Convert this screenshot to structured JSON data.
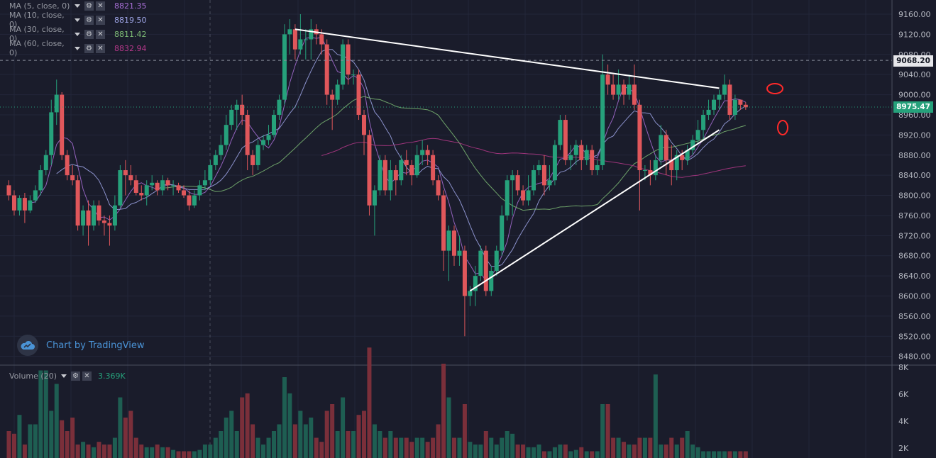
{
  "indicators": [
    {
      "label": "MA (5, close, 0)",
      "value": "8821.35",
      "color": "#a86fd6"
    },
    {
      "label": "MA (10, close, 0)",
      "value": "8819.50",
      "color": "#9fa6e8"
    },
    {
      "label": "MA (30, close, 0)",
      "value": "8811.42",
      "color": "#7dba74"
    },
    {
      "label": "MA (60, close, 0)",
      "value": "8832.94",
      "color": "#b5388a"
    }
  ],
  "watermark": "Chart by TradingView",
  "volume": {
    "label": "Volume (20)",
    "value": "3.369K"
  },
  "price_tags": {
    "crosshair": "9068.20",
    "last": "8975.47"
  },
  "colors": {
    "bg": "#1a1c2b",
    "up": "#26a17b",
    "down": "#e0575b",
    "ma5": "#a86fd6",
    "ma10": "#9fa6e8",
    "ma30": "#7dba74",
    "ma60": "#b5388a",
    "last_tag": "#26a17b",
    "annotation": "#ff2a2a"
  },
  "chart_data": {
    "type": "candlestick",
    "price_axis": {
      "ticks": [
        "9160.00",
        "9120.00",
        "9080.00",
        "9040.00",
        "9000.00",
        "8960.00",
        "8920.00",
        "8880.00",
        "8840.00",
        "8800.00",
        "8760.00",
        "8720.00",
        "8680.00",
        "8640.00",
        "8600.00",
        "8560.00",
        "8520.00",
        "8480.00"
      ]
    },
    "volume_axis": {
      "ticks": [
        "8K",
        "6K",
        "4K",
        "2K"
      ]
    },
    "candles": [
      [
        8820,
        8800,
        8790,
        8830
      ],
      [
        8800,
        8770,
        8760,
        8810
      ],
      [
        8770,
        8795,
        8760,
        8800
      ],
      [
        8795,
        8770,
        8745,
        8805
      ],
      [
        8770,
        8790,
        8765,
        8800
      ],
      [
        8790,
        8810,
        8785,
        8820
      ],
      [
        8810,
        8850,
        8800,
        8860
      ],
      [
        8850,
        8880,
        8840,
        8890
      ],
      [
        8880,
        8965,
        8860,
        8990
      ],
      [
        8965,
        9000,
        8940,
        9030
      ],
      [
        9000,
        8880,
        8870,
        9005
      ],
      [
        8880,
        8840,
        8830,
        8890
      ],
      [
        8840,
        8830,
        8820,
        8860
      ],
      [
        8830,
        8740,
        8730,
        8840
      ],
      [
        8740,
        8770,
        8720,
        8780
      ],
      [
        8770,
        8740,
        8700,
        8790
      ],
      [
        8740,
        8780,
        8730,
        8790
      ],
      [
        8780,
        8750,
        8740,
        8790
      ],
      [
        8750,
        8745,
        8720,
        8760
      ],
      [
        8745,
        8740,
        8700,
        8760
      ],
      [
        8740,
        8780,
        8730,
        8800
      ],
      [
        8780,
        8850,
        8775,
        8860
      ],
      [
        8850,
        8840,
        8800,
        8870
      ],
      [
        8840,
        8830,
        8820,
        8860
      ],
      [
        8830,
        8805,
        8800,
        8840
      ],
      [
        8805,
        8800,
        8790,
        8820
      ],
      [
        8800,
        8820,
        8780,
        8830
      ],
      [
        8820,
        8825,
        8810,
        8840
      ],
      [
        8825,
        8810,
        8800,
        8830
      ],
      [
        8810,
        8830,
        8800,
        8840
      ],
      [
        8830,
        8820,
        8810,
        8835
      ],
      [
        8820,
        8820,
        8800,
        8830
      ],
      [
        8820,
        8810,
        8805,
        8825
      ],
      [
        8810,
        8800,
        8795,
        8820
      ],
      [
        8800,
        8780,
        8770,
        8810
      ],
      [
        8780,
        8800,
        8775,
        8810
      ],
      [
        8800,
        8820,
        8790,
        8830
      ],
      [
        8820,
        8830,
        8810,
        8850
      ],
      [
        8830,
        8860,
        8820,
        8870
      ],
      [
        8860,
        8880,
        8850,
        8890
      ],
      [
        8880,
        8900,
        8870,
        8920
      ],
      [
        8900,
        8940,
        8890,
        8960
      ],
      [
        8940,
        8970,
        8930,
        8980
      ],
      [
        8970,
        8980,
        8930,
        8990
      ],
      [
        8980,
        8960,
        8940,
        9000
      ],
      [
        8960,
        8880,
        8850,
        8970
      ],
      [
        8880,
        8860,
        8840,
        8890
      ],
      [
        8860,
        8900,
        8850,
        8910
      ],
      [
        8900,
        8910,
        8890,
        8920
      ],
      [
        8910,
        8920,
        8900,
        8940
      ],
      [
        8920,
        8960,
        8915,
        8970
      ],
      [
        8960,
        8990,
        8950,
        9000
      ],
      [
        8990,
        9120,
        8980,
        9140
      ],
      [
        9120,
        9130,
        9080,
        9150
      ],
      [
        9130,
        9090,
        9070,
        9140
      ],
      [
        9090,
        9110,
        9080,
        9160
      ],
      [
        9110,
        9110,
        9070,
        9130
      ],
      [
        9110,
        9130,
        9070,
        9150
      ],
      [
        9130,
        9120,
        9100,
        9140
      ],
      [
        9120,
        9100,
        9080,
        9130
      ],
      [
        9100,
        9000,
        8980,
        9110
      ],
      [
        9000,
        8990,
        8930,
        9010
      ],
      [
        8990,
        9020,
        8980,
        9030
      ],
      [
        9020,
        9100,
        9010,
        9110
      ],
      [
        9100,
        9040,
        9020,
        9110
      ],
      [
        9040,
        9040,
        9020,
        9050
      ],
      [
        9040,
        8960,
        8950,
        9050
      ],
      [
        8960,
        8920,
        8880,
        8970
      ],
      [
        8920,
        8780,
        8760,
        8930
      ],
      [
        8780,
        8810,
        8720,
        8820
      ],
      [
        8810,
        8870,
        8800,
        8880
      ],
      [
        8870,
        8810,
        8800,
        8880
      ],
      [
        8810,
        8850,
        8790,
        8870
      ],
      [
        8850,
        8830,
        8800,
        8860
      ],
      [
        8830,
        8870,
        8820,
        8880
      ],
      [
        8870,
        8860,
        8840,
        8890
      ],
      [
        8860,
        8840,
        8820,
        8870
      ],
      [
        8840,
        8880,
        8835,
        8900
      ],
      [
        8880,
        8890,
        8860,
        8910
      ],
      [
        8890,
        8880,
        8860,
        8900
      ],
      [
        8880,
        8830,
        8820,
        8890
      ],
      [
        8830,
        8800,
        8790,
        8840
      ],
      [
        8800,
        8690,
        8650,
        8810
      ],
      [
        8690,
        8730,
        8630,
        8740
      ],
      [
        8730,
        8680,
        8660,
        8740
      ],
      [
        8680,
        8690,
        8660,
        8720
      ],
      [
        8690,
        8600,
        8520,
        8700
      ],
      [
        8600,
        8610,
        8580,
        8620
      ],
      [
        8610,
        8640,
        8580,
        8660
      ],
      [
        8640,
        8690,
        8630,
        8700
      ],
      [
        8690,
        8610,
        8600,
        8700
      ],
      [
        8610,
        8650,
        8600,
        8660
      ],
      [
        8650,
        8690,
        8640,
        8700
      ],
      [
        8690,
        8760,
        8680,
        8780
      ],
      [
        8760,
        8830,
        8750,
        8840
      ],
      [
        8830,
        8840,
        8760,
        8850
      ],
      [
        8840,
        8810,
        8800,
        8850
      ],
      [
        8810,
        8790,
        8780,
        8820
      ],
      [
        8790,
        8810,
        8780,
        8840
      ],
      [
        8810,
        8850,
        8800,
        8860
      ],
      [
        8850,
        8860,
        8840,
        8870
      ],
      [
        8860,
        8820,
        8800,
        8880
      ],
      [
        8820,
        8830,
        8810,
        8860
      ],
      [
        8830,
        8900,
        8820,
        8910
      ],
      [
        8900,
        8950,
        8890,
        8960
      ],
      [
        8950,
        8870,
        8860,
        8960
      ],
      [
        8870,
        8880,
        8850,
        8900
      ],
      [
        8880,
        8900,
        8860,
        8910
      ],
      [
        8900,
        8870,
        8850,
        8910
      ],
      [
        8870,
        8890,
        8860,
        8900
      ],
      [
        8890,
        8850,
        8840,
        8900
      ],
      [
        8850,
        8860,
        8840,
        8870
      ],
      [
        8860,
        9040,
        8850,
        9080
      ],
      [
        9040,
        9020,
        9000,
        9060
      ],
      [
        9020,
        9000,
        8990,
        9040
      ],
      [
        9000,
        9020,
        8990,
        9050
      ],
      [
        9020,
        9000,
        8980,
        9030
      ],
      [
        9000,
        9020,
        8990,
        9040
      ],
      [
        9020,
        8980,
        8970,
        9060
      ],
      [
        8980,
        8850,
        8770,
        8990
      ],
      [
        8850,
        8850,
        8830,
        8860
      ],
      [
        8850,
        8840,
        8820,
        8870
      ],
      [
        8840,
        8870,
        8830,
        8880
      ],
      [
        8870,
        8920,
        8860,
        8940
      ],
      [
        8920,
        8870,
        8840,
        8930
      ],
      [
        8870,
        8850,
        8820,
        8900
      ],
      [
        8850,
        8880,
        8830,
        8890
      ],
      [
        8880,
        8870,
        8850,
        8890
      ],
      [
        8870,
        8890,
        8860,
        8900
      ],
      [
        8890,
        8910,
        8880,
        8920
      ],
      [
        8910,
        8930,
        8900,
        8950
      ],
      [
        8930,
        8960,
        8910,
        8970
      ],
      [
        8960,
        8970,
        8950,
        8990
      ],
      [
        8970,
        8990,
        8960,
        9000
      ],
      [
        8990,
        9000,
        8970,
        9010
      ],
      [
        9000,
        9020,
        8990,
        9040
      ],
      [
        9020,
        8960,
        8950,
        9030
      ],
      [
        8960,
        8990,
        8950,
        9000
      ],
      [
        8990,
        8980,
        8970,
        8990
      ],
      [
        8980,
        8975,
        8970,
        8985
      ]
    ],
    "volumes": [
      2.0,
      1.8,
      3.2,
      1.0,
      2.5,
      2.5,
      6.5,
      6.5,
      3.5,
      5.5,
      2.8,
      2.0,
      3.0,
      1.0,
      1.2,
      1.0,
      0.8,
      1.2,
      1.0,
      1.0,
      1.5,
      4.5,
      3.0,
      3.5,
      1.5,
      1.0,
      0.8,
      0.8,
      1.0,
      0.8,
      0.8,
      0.6,
      0.5,
      0.5,
      0.5,
      0.5,
      0.6,
      1.0,
      1.0,
      1.5,
      2.0,
      3.0,
      3.5,
      2.0,
      4.5,
      4.8,
      2.5,
      1.5,
      1.0,
      1.5,
      2.0,
      2.5,
      6.0,
      4.8,
      2.5,
      3.5,
      2.5,
      3.0,
      1.5,
      1.2,
      3.5,
      4.0,
      2.0,
      4.5,
      2.0,
      2.0,
      3.2,
      3.5,
      8.2,
      2.5,
      2.0,
      1.5,
      2.0,
      1.5,
      1.5,
      1.5,
      1.2,
      1.5,
      1.5,
      1.2,
      1.5,
      2.5,
      7.0,
      4.5,
      1.5,
      1.5,
      4.0,
      1.2,
      1.0,
      1.0,
      2.0,
      1.5,
      1.0,
      1.5,
      2.0,
      1.8,
      1.0,
      1.0,
      0.8,
      0.8,
      1.0,
      0.5,
      0.5,
      0.8,
      1.0,
      1.0,
      0.5,
      0.6,
      0.8,
      0.5,
      0.5,
      0.5,
      4.0,
      4.0,
      1.5,
      1.5,
      1.2,
      1.0,
      1.0,
      1.5,
      1.5,
      1.5,
      6.2,
      1.0,
      1.0,
      1.5,
      1.0,
      1.5,
      2.0,
      1.0,
      0.8,
      0.5,
      0.5,
      0.5,
      0.5,
      0.5,
      0.5,
      0.5,
      0.5,
      0.5
    ],
    "trendlines": [
      {
        "from": [
          54,
          9130
        ],
        "to": [
          134,
          9013
        ]
      },
      {
        "from": [
          87,
          8610
        ],
        "to": [
          134,
          8930
        ]
      }
    ]
  }
}
